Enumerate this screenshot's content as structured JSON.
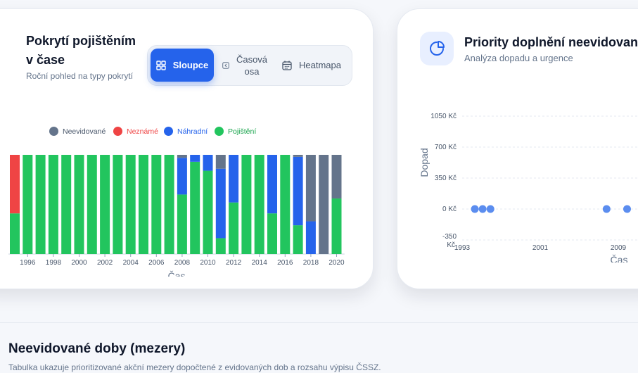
{
  "coverage_card": {
    "title_line1": "Pokrytí pojištěním",
    "title_line2": "v čase",
    "subtitle": "Roční pohled na typy pokrytí",
    "tabs": [
      {
        "label": "Sloupce",
        "icon": "grid-icon",
        "active": true
      },
      {
        "label_line1": "Časová",
        "label_line2": "osa",
        "icon": "timeline-icon",
        "active": false
      },
      {
        "label": "Heatmapa",
        "icon": "calendar-icon",
        "active": false
      }
    ]
  },
  "priority_card": {
    "title": "Priority doplnění neevidovan",
    "subtitle": "Analýza dopadu a urgence",
    "icon": "pie-chart-icon"
  },
  "section": {
    "title": "Neevidované doby (mezery)",
    "description": "Tabulka ukazuje prioritizované akční mezery dopočtené z evidovaných dob a rozsahu výpisu ČSSZ."
  },
  "chart_data": [
    {
      "type": "bar",
      "stacked": true,
      "xlabel": "Čas",
      "x_tick_labels": [
        "1996",
        "1998",
        "2000",
        "2002",
        "2004",
        "2006",
        "2008",
        "2010",
        "2012",
        "2014",
        "2016",
        "2018",
        "2020"
      ],
      "categories": [
        1995,
        1996,
        1997,
        1998,
        1999,
        2000,
        2001,
        2002,
        2003,
        2004,
        2005,
        2006,
        2007,
        2008,
        2009,
        2010,
        2011,
        2012,
        2013,
        2014,
        2015,
        2016,
        2017,
        2018,
        2019,
        2020
      ],
      "legend_position": "top",
      "series": [
        {
          "name": "Pojištění",
          "color": "#22c55e",
          "values": [
            0.41,
            1,
            1,
            1,
            1,
            1,
            1,
            1,
            1,
            1,
            1,
            1,
            1,
            0.6,
            0.93,
            0.84,
            0.16,
            0.52,
            1,
            1,
            0.41,
            1,
            0.29,
            0,
            0,
            0.56
          ]
        },
        {
          "name": "Náhradní",
          "color": "#2563eb",
          "values": [
            0,
            0,
            0,
            0,
            0,
            0,
            0,
            0,
            0,
            0,
            0,
            0,
            0,
            0.37,
            0.07,
            0.16,
            0.7,
            0.48,
            0,
            0,
            0.59,
            0,
            0.69,
            0.33,
            0,
            0
          ]
        },
        {
          "name": "Neznámé",
          "color": "#ef4444",
          "values": [
            0.59,
            0,
            0,
            0,
            0,
            0,
            0,
            0,
            0,
            0,
            0,
            0,
            0,
            0,
            0,
            0,
            0,
            0,
            0,
            0,
            0,
            0,
            0,
            0,
            0,
            0
          ]
        },
        {
          "name": "Neevidované",
          "color": "#64748b",
          "values": [
            0,
            0,
            0,
            0,
            0,
            0,
            0,
            0,
            0,
            0,
            0,
            0,
            0,
            0.03,
            0,
            0,
            0.14,
            0,
            0,
            0,
            0,
            0,
            0.02,
            0.67,
            1,
            0.44
          ]
        }
      ]
    },
    {
      "type": "scatter",
      "xlabel": "Čas",
      "ylabel": "Dopad",
      "y_ticks": [
        "1050 Kč",
        "700 Kč",
        "350 Kč",
        "0 Kč",
        "-350 Kč"
      ],
      "x_ticks": [
        "1993",
        "2001",
        "2009"
      ],
      "xlim": [
        1993,
        2011
      ],
      "ylim": [
        -350,
        1050
      ],
      "grid": true,
      "points": [
        {
          "x": 1994.3,
          "y": 0
        },
        {
          "x": 1995.1,
          "y": 0
        },
        {
          "x": 1995.9,
          "y": 0
        },
        {
          "x": 2007.8,
          "y": 0
        },
        {
          "x": 2009.9,
          "y": 0
        }
      ],
      "point_color": "#5b8def"
    }
  ]
}
